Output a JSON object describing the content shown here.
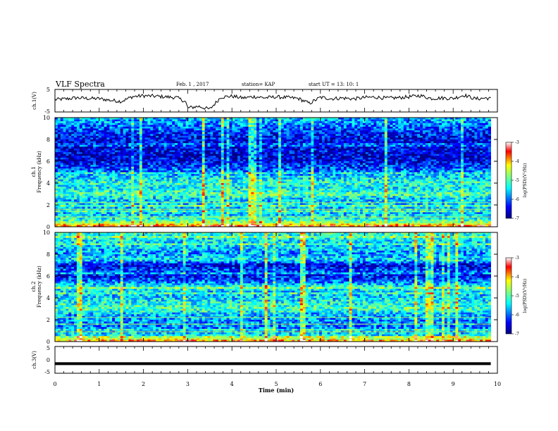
{
  "chart_data": [
    {
      "type": "line",
      "panel": "ch1",
      "header": {
        "title": "VLF Spectra",
        "date": "Feb. 1  , 2017",
        "station": "station= KAP",
        "start": "start  UT  =    13: 10: 1"
      },
      "ylabel": "ch.1(V)",
      "ylim": [
        -5,
        5
      ],
      "yticks": [
        "5",
        "-5"
      ],
      "xlim": [
        0,
        10
      ],
      "series": [
        {
          "x": [
            0,
            0.25,
            0.5,
            0.75,
            1.0,
            1.25,
            1.5,
            1.75,
            2.0,
            2.25,
            2.5,
            2.75,
            2.95,
            3.0,
            3.25,
            3.5,
            3.75,
            4.0,
            4.25,
            4.5,
            4.75,
            5.0,
            5.25,
            5.5,
            5.75,
            6.0,
            6.25,
            6.5,
            6.75,
            7.0,
            7.25,
            7.5,
            7.75,
            8.0,
            8.25,
            8.5,
            8.75,
            9.0,
            9.25,
            9.5,
            9.75,
            9.85
          ],
          "values": [
            0.5,
            0.8,
            1.3,
            1.0,
            0.9,
            0.2,
            -0.3,
            1.8,
            2.2,
            2.0,
            1.7,
            1.4,
            -0.4,
            -3.2,
            -2.5,
            -3.8,
            1.6,
            2.0,
            1.2,
            1.8,
            1.3,
            1.7,
            1.4,
            1.0,
            -1.2,
            1.5,
            0.9,
            1.2,
            0.8,
            1.4,
            1.6,
            1.1,
            1.3,
            1.7,
            2.3,
            1.0,
            1.2,
            1.0,
            2.5,
            0.8,
            1.2,
            0.9
          ]
        }
      ],
      "grid": false
    },
    {
      "type": "heatmap",
      "panel": "ch2-spectrogram",
      "ylabel_lines": [
        "ch.1",
        "Frequency  (kHz)"
      ],
      "ylim": [
        0,
        10
      ],
      "yticks": [
        "10",
        "8",
        "6",
        "4",
        "2",
        "0"
      ],
      "xlim": [
        0,
        10
      ],
      "data_end_min": 9.85,
      "colorbar": {
        "label": "log(PSD)(V²/Hz)",
        "range": [
          -7,
          -3
        ],
        "ticks": [
          "-3",
          "-4",
          "-5",
          "-6",
          "-7"
        ],
        "colormap": [
          "#00007f",
          "#0000ff",
          "#00ffff",
          "#7fff7f",
          "#ffff00",
          "#ff0000",
          "#ffffff"
        ]
      },
      "mean_log_psd_by_freq_khz": {
        "freq": [
          0,
          0.5,
          1,
          1.5,
          2,
          2.5,
          3,
          3.5,
          4,
          4.5,
          5,
          5.5,
          6,
          6.5,
          7,
          7.5,
          8,
          8.5,
          9,
          9.5,
          10
        ],
        "level": [
          -3.4,
          -5.0,
          -5.5,
          -5.6,
          -5.5,
          -5.6,
          -5.0,
          -5.4,
          -5.2,
          -5.5,
          -5.9,
          -6.2,
          -6.5,
          -6.6,
          -6.5,
          -6.6,
          -6.5,
          -6.3,
          -6.1,
          -5.8,
          -5.6
        ]
      }
    },
    {
      "type": "heatmap",
      "panel": "ch2-spectrogram",
      "ylabel_lines": [
        "ch.2",
        "Frequency  (kHz)"
      ],
      "ylim": [
        0,
        10
      ],
      "yticks": [
        "10",
        "8",
        "6",
        "4",
        "2",
        "0"
      ],
      "xlim": [
        0,
        10
      ],
      "data_end_min": 9.85,
      "colorbar": {
        "label": "log(PSD)(V²/Hz)",
        "range": [
          -7,
          -3
        ],
        "ticks": [
          "-3",
          "-4",
          "-5",
          "-6",
          "-7"
        ],
        "colormap": [
          "#00007f",
          "#0000ff",
          "#00ffff",
          "#7fff7f",
          "#ffff00",
          "#ff0000",
          "#ffffff"
        ]
      },
      "mean_log_psd_by_freq_khz": {
        "freq": [
          0,
          0.5,
          1,
          1.5,
          2,
          2.5,
          3,
          3.5,
          4,
          4.5,
          5,
          5.5,
          6,
          6.5,
          7,
          7.5,
          8,
          8.5,
          9,
          9.5,
          10
        ],
        "level": [
          -3.6,
          -5.3,
          -5.8,
          -5.9,
          -5.8,
          -5.7,
          -5.0,
          -5.3,
          -5.5,
          -5.6,
          -5.2,
          -6.0,
          -6.4,
          -6.1,
          -6.6,
          -5.4,
          -5.8,
          -5.6,
          -5.5,
          -5.3,
          -5.2
        ]
      }
    },
    {
      "type": "line",
      "panel": "ch3",
      "ylabel": "ch.3(V)",
      "ylim": [
        -5,
        5
      ],
      "yticks": [
        "5",
        "0",
        "-5"
      ],
      "xlim": [
        0,
        10
      ],
      "xticks": [
        "0",
        "1",
        "2",
        "3",
        "4",
        "5",
        "6",
        "7",
        "8",
        "9",
        "10"
      ],
      "xlabel": "Time  (min)",
      "series": [
        {
          "x": [
            0,
            9.85
          ],
          "values": [
            -1.4,
            -1.4
          ]
        }
      ]
    }
  ]
}
